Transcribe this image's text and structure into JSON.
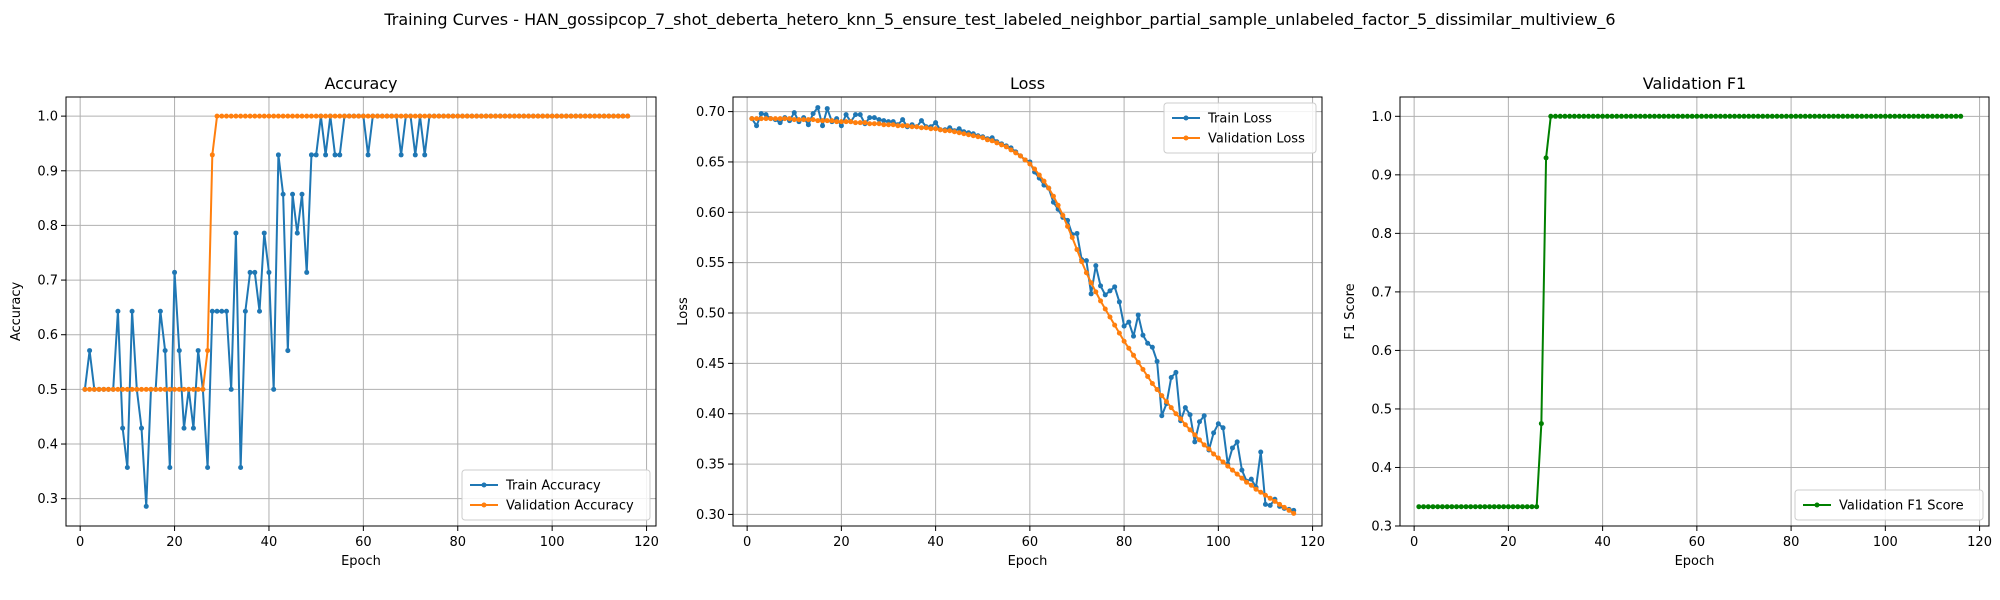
{
  "figure": {
    "suptitle": "Training Curves - HAN_gossipcop_7_shot_deberta_hetero_knn_5_ensure_test_labeled_neighbor_partial_sample_unlabeled_factor_5_dissimilar_multiview_6"
  },
  "colors": {
    "blue": "#1f77b4",
    "orange": "#ff7f0e",
    "green": "#008000",
    "grid": "#b0b0b0"
  },
  "chart_data": [
    {
      "type": "line",
      "title": "Accuracy",
      "xlabel": "Epoch",
      "ylabel": "Accuracy",
      "xlim": [
        -3,
        122
      ],
      "ylim": [
        0.25,
        1.035
      ],
      "xticks": [
        0,
        20,
        40,
        60,
        80,
        100,
        120
      ],
      "yticks": [
        0.3,
        0.4,
        0.5,
        0.6,
        0.7,
        0.8,
        0.9,
        1.0
      ],
      "yticklabels": [
        "0.3",
        "0.4",
        "0.5",
        "0.6",
        "0.7",
        "0.8",
        "0.9",
        "1.0"
      ],
      "grid": true,
      "legend_position": "lower-right",
      "series": [
        {
          "name": "Train Accuracy",
          "color": "#1f77b4",
          "x_start": 1,
          "values": [
            0.5,
            0.571,
            0.5,
            0.5,
            0.5,
            0.5,
            0.5,
            0.643,
            0.429,
            0.357,
            0.643,
            0.5,
            0.429,
            0.286,
            0.5,
            0.5,
            0.643,
            0.571,
            0.357,
            0.714,
            0.571,
            0.429,
            0.5,
            0.429,
            0.571,
            0.5,
            0.357,
            0.643,
            0.643,
            0.643,
            0.643,
            0.5,
            0.786,
            0.357,
            0.643,
            0.714,
            0.714,
            0.643,
            0.786,
            0.714,
            0.5,
            0.929,
            0.857,
            0.571,
            0.857,
            0.786,
            0.857,
            0.714,
            0.929,
            0.929,
            1.0,
            0.929,
            1.0,
            0.929,
            0.929,
            1.0,
            1.0,
            1.0,
            1.0,
            1.0,
            0.929,
            1.0,
            1.0,
            1.0,
            1.0,
            1.0,
            1.0,
            0.929,
            1.0,
            1.0,
            0.929,
            1.0,
            0.929,
            1.0,
            1.0,
            1.0,
            1.0,
            1.0,
            1.0,
            1.0,
            1.0,
            1.0,
            1.0,
            1.0,
            1.0,
            1.0,
            1.0,
            1.0,
            1.0,
            1.0,
            1.0,
            1.0,
            1.0,
            1.0,
            1.0,
            1.0,
            1.0,
            1.0,
            1.0,
            1.0,
            1.0,
            1.0,
            1.0,
            1.0,
            1.0,
            1.0,
            1.0,
            1.0,
            1.0,
            1.0,
            1.0,
            1.0,
            1.0,
            1.0,
            1.0,
            1.0
          ]
        },
        {
          "name": "Validation Accuracy",
          "color": "#ff7f0e",
          "x_start": 1,
          "values": [
            0.5,
            0.5,
            0.5,
            0.5,
            0.5,
            0.5,
            0.5,
            0.5,
            0.5,
            0.5,
            0.5,
            0.5,
            0.5,
            0.5,
            0.5,
            0.5,
            0.5,
            0.5,
            0.5,
            0.5,
            0.5,
            0.5,
            0.5,
            0.5,
            0.5,
            0.5,
            0.571,
            0.929,
            1.0,
            1.0,
            1.0,
            1.0,
            1.0,
            1.0,
            1.0,
            1.0,
            1.0,
            1.0,
            1.0,
            1.0,
            1.0,
            1.0,
            1.0,
            1.0,
            1.0,
            1.0,
            1.0,
            1.0,
            1.0,
            1.0,
            1.0,
            1.0,
            1.0,
            1.0,
            1.0,
            1.0,
            1.0,
            1.0,
            1.0,
            1.0,
            1.0,
            1.0,
            1.0,
            1.0,
            1.0,
            1.0,
            1.0,
            1.0,
            1.0,
            1.0,
            1.0,
            1.0,
            1.0,
            1.0,
            1.0,
            1.0,
            1.0,
            1.0,
            1.0,
            1.0,
            1.0,
            1.0,
            1.0,
            1.0,
            1.0,
            1.0,
            1.0,
            1.0,
            1.0,
            1.0,
            1.0,
            1.0,
            1.0,
            1.0,
            1.0,
            1.0,
            1.0,
            1.0,
            1.0,
            1.0,
            1.0,
            1.0,
            1.0,
            1.0,
            1.0,
            1.0,
            1.0,
            1.0,
            1.0,
            1.0,
            1.0,
            1.0,
            1.0,
            1.0,
            1.0,
            1.0
          ]
        }
      ]
    },
    {
      "type": "line",
      "title": "Loss",
      "xlabel": "Epoch",
      "ylabel": "Loss",
      "xlim": [
        -3,
        122
      ],
      "ylim": [
        0.2885,
        0.7145
      ],
      "xticks": [
        0,
        20,
        40,
        60,
        80,
        100,
        120
      ],
      "yticks": [
        0.3,
        0.35,
        0.4,
        0.45,
        0.5,
        0.55,
        0.6,
        0.65,
        0.7
      ],
      "yticklabels": [
        "0.30",
        "0.35",
        "0.40",
        "0.45",
        "0.50",
        "0.55",
        "0.60",
        "0.65",
        "0.70"
      ],
      "grid": true,
      "legend_position": "upper-right",
      "series": [
        {
          "name": "Train Loss",
          "color": "#1f77b4",
          "x_start": 1,
          "values": [
            0.693,
            0.686,
            0.698,
            0.697,
            0.693,
            0.692,
            0.689,
            0.694,
            0.691,
            0.699,
            0.69,
            0.694,
            0.687,
            0.698,
            0.704,
            0.686,
            0.703,
            0.69,
            0.693,
            0.686,
            0.697,
            0.69,
            0.697,
            0.697,
            0.688,
            0.694,
            0.694,
            0.692,
            0.691,
            0.69,
            0.69,
            0.687,
            0.692,
            0.685,
            0.687,
            0.685,
            0.691,
            0.685,
            0.685,
            0.689,
            0.682,
            0.682,
            0.684,
            0.681,
            0.683,
            0.68,
            0.679,
            0.678,
            0.676,
            0.675,
            0.673,
            0.674,
            0.67,
            0.668,
            0.666,
            0.664,
            0.66,
            0.656,
            0.652,
            0.65,
            0.64,
            0.634,
            0.627,
            0.624,
            0.61,
            0.603,
            0.595,
            0.592,
            0.578,
            0.579,
            0.553,
            0.552,
            0.519,
            0.547,
            0.527,
            0.518,
            0.522,
            0.526,
            0.511,
            0.487,
            0.491,
            0.477,
            0.498,
            0.478,
            0.47,
            0.466,
            0.452,
            0.398,
            0.41,
            0.436,
            0.441,
            0.393,
            0.406,
            0.399,
            0.372,
            0.392,
            0.398,
            0.364,
            0.381,
            0.39,
            0.386,
            0.35,
            0.366,
            0.372,
            0.344,
            0.333,
            0.335,
            0.327,
            0.362,
            0.31,
            0.309,
            0.315,
            0.308,
            0.306,
            0.305,
            0.304
          ]
        },
        {
          "name": "Validation Loss",
          "color": "#ff7f0e",
          "x_start": 1,
          "values": [
            0.693,
            0.693,
            0.693,
            0.693,
            0.693,
            0.693,
            0.693,
            0.693,
            0.693,
            0.692,
            0.692,
            0.692,
            0.692,
            0.692,
            0.691,
            0.691,
            0.691,
            0.691,
            0.69,
            0.69,
            0.69,
            0.69,
            0.689,
            0.689,
            0.689,
            0.688,
            0.688,
            0.688,
            0.687,
            0.687,
            0.687,
            0.686,
            0.686,
            0.686,
            0.685,
            0.685,
            0.684,
            0.684,
            0.683,
            0.683,
            0.682,
            0.681,
            0.681,
            0.68,
            0.679,
            0.678,
            0.677,
            0.676,
            0.675,
            0.674,
            0.672,
            0.671,
            0.669,
            0.667,
            0.665,
            0.662,
            0.659,
            0.656,
            0.652,
            0.648,
            0.643,
            0.637,
            0.631,
            0.624,
            0.616,
            0.607,
            0.597,
            0.586,
            0.575,
            0.563,
            0.551,
            0.54,
            0.53,
            0.521,
            0.512,
            0.504,
            0.496,
            0.488,
            0.48,
            0.472,
            0.465,
            0.458,
            0.451,
            0.444,
            0.437,
            0.43,
            0.424,
            0.418,
            0.412,
            0.406,
            0.4,
            0.395,
            0.389,
            0.384,
            0.379,
            0.374,
            0.369,
            0.365,
            0.36,
            0.356,
            0.352,
            0.348,
            0.344,
            0.34,
            0.336,
            0.332,
            0.329,
            0.325,
            0.322,
            0.319,
            0.316,
            0.313,
            0.31,
            0.307,
            0.304,
            0.301
          ]
        }
      ]
    },
    {
      "type": "line",
      "title": "Validation F1",
      "xlabel": "Epoch",
      "ylabel": "F1 Score",
      "xlim": [
        -3,
        122
      ],
      "ylim": [
        0.3,
        1.033
      ],
      "xticks": [
        0,
        20,
        40,
        60,
        80,
        100,
        120
      ],
      "yticks": [
        0.3,
        0.4,
        0.5,
        0.6,
        0.7,
        0.8,
        0.9,
        1.0
      ],
      "yticklabels": [
        "0.3",
        "0.4",
        "0.5",
        "0.6",
        "0.7",
        "0.8",
        "0.9",
        "1.0"
      ],
      "grid": true,
      "legend_position": "lower-right",
      "series": [
        {
          "name": "Validation F1 Score",
          "color": "#008000",
          "x_start": 1,
          "values": [
            0.333,
            0.333,
            0.333,
            0.333,
            0.333,
            0.333,
            0.333,
            0.333,
            0.333,
            0.333,
            0.333,
            0.333,
            0.333,
            0.333,
            0.333,
            0.333,
            0.333,
            0.333,
            0.333,
            0.333,
            0.333,
            0.333,
            0.333,
            0.333,
            0.333,
            0.333,
            0.475,
            0.929,
            1.0,
            1.0,
            1.0,
            1.0,
            1.0,
            1.0,
            1.0,
            1.0,
            1.0,
            1.0,
            1.0,
            1.0,
            1.0,
            1.0,
            1.0,
            1.0,
            1.0,
            1.0,
            1.0,
            1.0,
            1.0,
            1.0,
            1.0,
            1.0,
            1.0,
            1.0,
            1.0,
            1.0,
            1.0,
            1.0,
            1.0,
            1.0,
            1.0,
            1.0,
            1.0,
            1.0,
            1.0,
            1.0,
            1.0,
            1.0,
            1.0,
            1.0,
            1.0,
            1.0,
            1.0,
            1.0,
            1.0,
            1.0,
            1.0,
            1.0,
            1.0,
            1.0,
            1.0,
            1.0,
            1.0,
            1.0,
            1.0,
            1.0,
            1.0,
            1.0,
            1.0,
            1.0,
            1.0,
            1.0,
            1.0,
            1.0,
            1.0,
            1.0,
            1.0,
            1.0,
            1.0,
            1.0,
            1.0,
            1.0,
            1.0,
            1.0,
            1.0,
            1.0,
            1.0,
            1.0,
            1.0,
            1.0,
            1.0,
            1.0,
            1.0,
            1.0,
            1.0,
            1.0
          ]
        }
      ]
    }
  ]
}
